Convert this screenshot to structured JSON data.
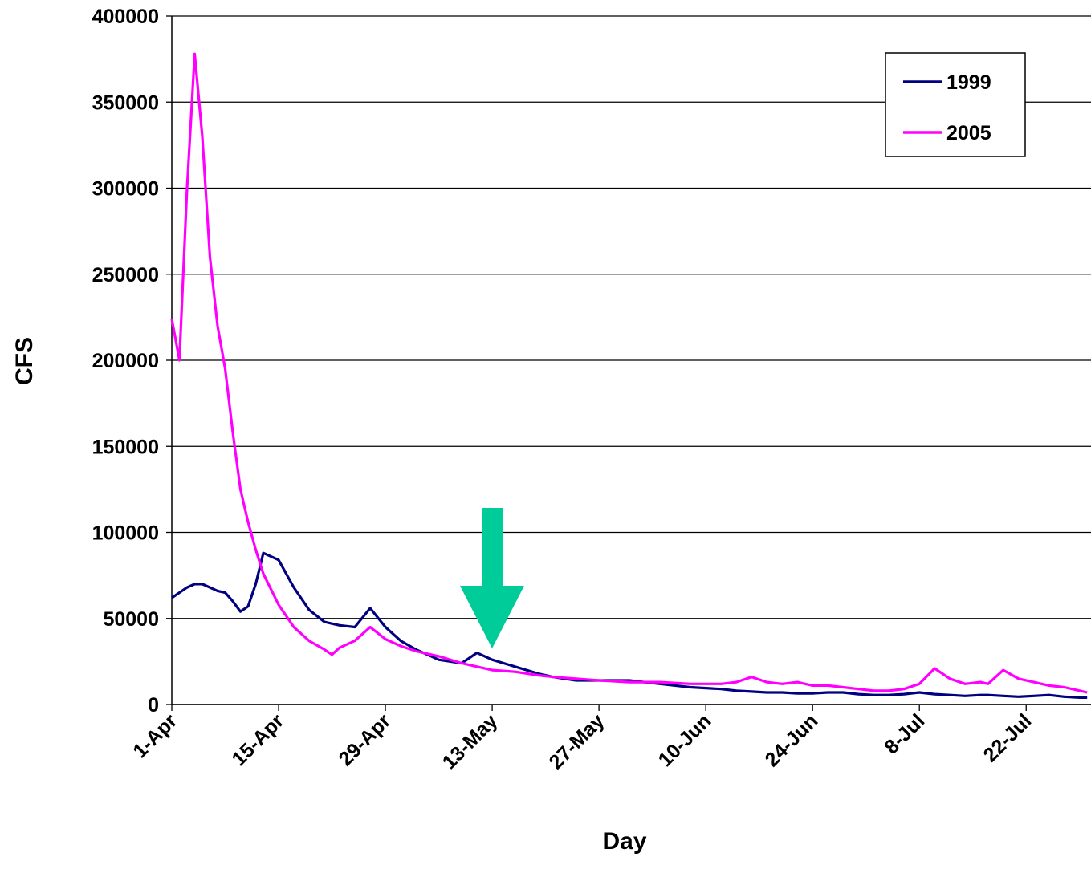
{
  "chart_data": {
    "type": "line",
    "x_label": "Day",
    "y_label": "CFS",
    "x": [
      0,
      1,
      2,
      3,
      4,
      5,
      6,
      7,
      8,
      9,
      10,
      11,
      12,
      14,
      16,
      18,
      20,
      21,
      22,
      24,
      26,
      28,
      30,
      32,
      35,
      38,
      40,
      42,
      45,
      48,
      50,
      53,
      56,
      60,
      64,
      68,
      72,
      74,
      76,
      78,
      80,
      82,
      84,
      86,
      88,
      90,
      92,
      94,
      96,
      98,
      100,
      102,
      104,
      106,
      107,
      109,
      111,
      113,
      115,
      117,
      119,
      120
    ],
    "series": [
      {
        "name": "1999",
        "color": "#000080",
        "values": [
          62000,
          65000,
          68000,
          70000,
          70000,
          68000,
          66000,
          65000,
          60000,
          54000,
          57000,
          70000,
          88000,
          84000,
          68000,
          55000,
          48000,
          47000,
          46000,
          45000,
          56000,
          45000,
          37000,
          32000,
          26000,
          24000,
          30000,
          26000,
          22000,
          18000,
          16000,
          14000,
          14000,
          14000,
          12000,
          10000,
          9000,
          8000,
          7500,
          7000,
          7000,
          6500,
          6500,
          7000,
          7000,
          6000,
          5500,
          5500,
          6000,
          7000,
          6000,
          5500,
          5000,
          5500,
          5500,
          5000,
          4500,
          5000,
          5500,
          4500,
          4000,
          4000
        ]
      },
      {
        "name": "2005",
        "color": "#ff00ff",
        "values": [
          224000,
          200000,
          300000,
          378000,
          330000,
          260000,
          220000,
          195000,
          158000,
          125000,
          106000,
          90000,
          76000,
          58000,
          45000,
          37000,
          32000,
          29000,
          33000,
          37000,
          45000,
          38000,
          34000,
          31000,
          28000,
          24000,
          22000,
          20000,
          19000,
          17000,
          16000,
          15000,
          14000,
          13000,
          13000,
          12000,
          12000,
          13000,
          16000,
          13000,
          12000,
          13000,
          11000,
          11000,
          10000,
          9000,
          8000,
          8000,
          9000,
          12000,
          21000,
          15000,
          12000,
          13000,
          12000,
          20000,
          15000,
          13000,
          11000,
          10000,
          8000,
          7000
        ]
      }
    ],
    "xlim": [
      0,
      120.5
    ],
    "xticks": [
      {
        "value": 0,
        "label": "1-Apr"
      },
      {
        "value": 14,
        "label": "15-Apr"
      },
      {
        "value": 28,
        "label": "29-Apr"
      },
      {
        "value": 42,
        "label": "13-May"
      },
      {
        "value": 56,
        "label": "27-May"
      },
      {
        "value": 70,
        "label": "10-Jun"
      },
      {
        "value": 84,
        "label": "24-Jun"
      },
      {
        "value": 98,
        "label": "8-Jul"
      },
      {
        "value": 112,
        "label": "22-Jul"
      }
    ],
    "ylim": [
      0,
      400000
    ],
    "yticks": [
      0,
      50000,
      100000,
      150000,
      200000,
      250000,
      300000,
      350000,
      400000
    ],
    "grid": true,
    "legend": "upper right"
  }
}
